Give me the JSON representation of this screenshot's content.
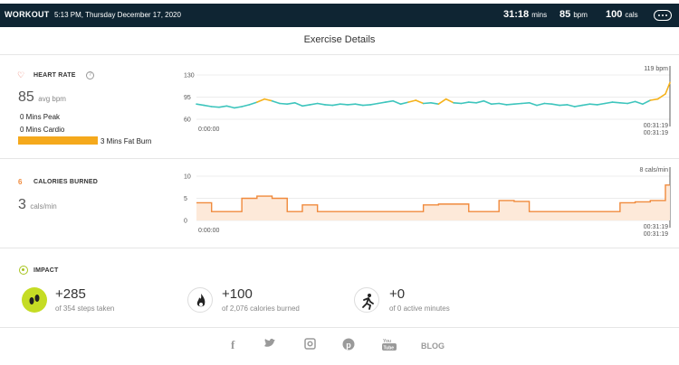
{
  "header": {
    "workout_label": "WORKOUT",
    "datetime": "5:13 PM, Thursday December 17, 2020",
    "duration": "31:18",
    "duration_unit": "mins",
    "heart_rate": "85",
    "heart_rate_unit": "bpm",
    "calories": "100",
    "calories_unit": "cals",
    "bg_color": "#0f2533"
  },
  "page_title": "Exercise Details",
  "heart_rate": {
    "label": "HEART RATE",
    "help": "?",
    "avg_value": "85",
    "avg_unit": "avg bpm",
    "peak_text": "0 Mins Peak",
    "cardio_text": "0 Mins Cardio",
    "fatburn_text": "3 Mins Fat Burn",
    "icon": "heart-icon",
    "accent": "#e35f4a",
    "fatburn_color": "#f5a91c"
  },
  "calories": {
    "label": "CALORIES BURNED",
    "icon_text": "6",
    "value": "3",
    "unit": "cals/min",
    "accent": "#f08a3c"
  },
  "impact": {
    "label": "IMPACT",
    "items": [
      {
        "value": "+285",
        "sub": "of 354 steps taken",
        "icon": "steps-icon",
        "color": "#c5dc24"
      },
      {
        "value": "+100",
        "sub": "of 2,076 calories burned",
        "icon": "flame-icon",
        "color": "#ffffff"
      },
      {
        "value": "+0",
        "sub": "of 0 active minutes",
        "icon": "runner-icon",
        "color": "#ffffff"
      }
    ]
  },
  "footer": {
    "icons": [
      "facebook-icon",
      "twitter-icon",
      "instagram-icon",
      "pinterest-icon",
      "youtube-icon"
    ],
    "blog": "BLOG"
  },
  "chart_data": [
    {
      "type": "line",
      "title": "",
      "y_ticks": [
        "130",
        "95",
        "60"
      ],
      "ylim": [
        60,
        130
      ],
      "x_start": "0:00:00",
      "x_end_top": "00:31:19",
      "x_end_bottom": "00:31:19",
      "peak_label": "119 bpm",
      "series": [
        {
          "color": "#3ec5bd",
          "highlight_color": "#f5b21b",
          "x": [
            0,
            0.5,
            1,
            1.5,
            2,
            2.5,
            3,
            3.5,
            4,
            4.5,
            5,
            5.5,
            6,
            6.5,
            7,
            7.5,
            8,
            8.5,
            9,
            9.5,
            10,
            10.5,
            11,
            11.5,
            12,
            12.5,
            13,
            13.5,
            14,
            14.5,
            15,
            15.5,
            16,
            16.5,
            17,
            17.5,
            18,
            18.5,
            19,
            19.5,
            20,
            20.5,
            21,
            21.5,
            22,
            22.5,
            23,
            23.5,
            24,
            24.5,
            25,
            25.5,
            26,
            26.5,
            27,
            27.5,
            28,
            28.5,
            29,
            29.5,
            30,
            30.5,
            31,
            31.3
          ],
          "values": [
            84,
            82,
            80,
            79,
            81,
            78,
            80,
            83,
            87,
            92,
            89,
            85,
            84,
            86,
            81,
            83,
            85,
            83,
            82,
            84,
            83,
            84,
            82,
            83,
            85,
            87,
            89,
            84,
            87,
            90,
            85,
            86,
            84,
            92,
            86,
            85,
            87,
            86,
            89,
            84,
            85,
            83,
            84,
            85,
            86,
            82,
            85,
            84,
            82,
            83,
            80,
            82,
            84,
            83,
            85,
            87,
            86,
            85,
            88,
            84,
            90,
            92,
            100,
            118
          ],
          "highlighted": [
            false,
            false,
            false,
            false,
            false,
            false,
            false,
            false,
            false,
            true,
            false,
            false,
            false,
            false,
            false,
            false,
            false,
            false,
            false,
            false,
            false,
            false,
            false,
            false,
            false,
            false,
            false,
            false,
            false,
            true,
            false,
            false,
            false,
            true,
            false,
            false,
            false,
            false,
            false,
            false,
            false,
            false,
            false,
            false,
            false,
            false,
            false,
            false,
            false,
            false,
            false,
            false,
            false,
            false,
            false,
            false,
            false,
            false,
            false,
            false,
            false,
            true,
            true,
            true
          ]
        }
      ]
    },
    {
      "type": "area",
      "title": "",
      "y_ticks": [
        "10",
        "5",
        "0"
      ],
      "ylim": [
        0,
        10
      ],
      "x_start": "0:00:00",
      "x_end_top": "00:31:19",
      "x_end_bottom": "00:31:19",
      "peak_label": "8 cals/min",
      "series": [
        {
          "color": "#f08a3c",
          "fill": "#fde9d9",
          "x": [
            0,
            1,
            2,
            3,
            4,
            5,
            6,
            7,
            8,
            9,
            10,
            11,
            12,
            13,
            14,
            15,
            16,
            17,
            18,
            19,
            20,
            21,
            22,
            23,
            24,
            25,
            26,
            27,
            28,
            29,
            30,
            31,
            31.3
          ],
          "values": [
            4,
            2,
            2,
            5,
            5.5,
            5,
            2,
            3.5,
            2,
            2,
            2,
            2,
            2,
            2,
            2,
            3.5,
            3.7,
            3.7,
            2,
            2,
            4.5,
            4.3,
            2,
            2,
            2,
            2,
            2,
            2,
            4,
            4.2,
            4.5,
            8,
            8
          ]
        }
      ]
    }
  ]
}
